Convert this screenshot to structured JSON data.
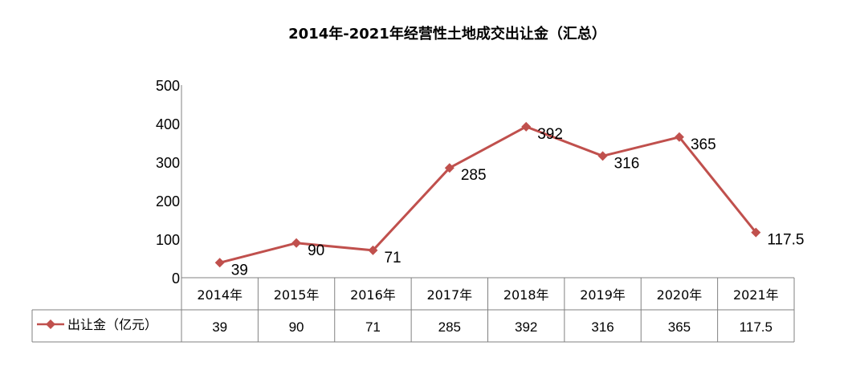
{
  "chart_data": {
    "type": "line",
    "title": "2014年-2021年经营性土地成交出让金（汇总）",
    "categories": [
      "2014年",
      "2015年",
      "2016年",
      "2017年",
      "2018年",
      "2019年",
      "2020年",
      "2021年"
    ],
    "series": [
      {
        "name": "出让金（亿元）",
        "values": [
          39,
          90,
          71,
          285,
          392,
          316,
          365,
          117.5
        ],
        "labels": [
          "39",
          "90",
          "71",
          "285",
          "392",
          "316",
          "365",
          "117.5"
        ],
        "color": "#C0504D",
        "marker": "diamond"
      }
    ],
    "yticks": [
      "0",
      "100",
      "200",
      "300",
      "400",
      "500"
    ],
    "ylim": [
      0,
      500
    ],
    "grid": false,
    "legend": "data-table-left",
    "data_table": true
  }
}
